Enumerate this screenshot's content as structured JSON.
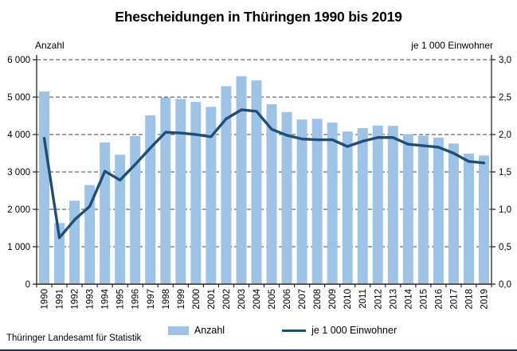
{
  "title": "Ehescheidungen in Thüringen 1990 bis 2019",
  "footer": "Thüringer Landesamt für Statistik",
  "legend": {
    "bar_label": "Anzahl",
    "line_label": "je 1 000 Einwohner"
  },
  "colors": {
    "bar": "#9DC3E6",
    "line": "#1F4E79",
    "grid": "#404040",
    "axis": "#262626",
    "bottom_rule": "#17375E"
  },
  "chart_data": {
    "type": "bar+line",
    "title": "Ehescheidungen in Thüringen 1990 bis 2019",
    "categories": [
      "1990",
      "1991",
      "1992",
      "1993",
      "1994",
      "1995",
      "1996",
      "1997",
      "1998",
      "1999",
      "2000",
      "2001",
      "2002",
      "2003",
      "2004",
      "2005",
      "2006",
      "2007",
      "2008",
      "2009",
      "2010",
      "2011",
      "2012",
      "2013",
      "2014",
      "2015",
      "2016",
      "2017",
      "2018",
      "2019"
    ],
    "series": [
      {
        "name": "Anzahl",
        "type": "bar",
        "axis": "left",
        "values": [
          5150,
          1630,
          2230,
          2650,
          3790,
          3460,
          3960,
          4510,
          4990,
          4950,
          4870,
          4740,
          5290,
          5560,
          5450,
          4810,
          4600,
          4400,
          4420,
          4320,
          4080,
          4170,
          4240,
          4230,
          4010,
          3970,
          3920,
          3760,
          3490,
          3440
        ]
      },
      {
        "name": "je 1 000 Einwohner",
        "type": "line",
        "axis": "right",
        "values": [
          1.95,
          0.62,
          0.86,
          1.04,
          1.51,
          1.39,
          1.6,
          1.82,
          2.03,
          2.02,
          2.0,
          1.97,
          2.21,
          2.33,
          2.31,
          2.07,
          1.99,
          1.94,
          1.93,
          1.93,
          1.84,
          1.91,
          1.96,
          1.96,
          1.87,
          1.85,
          1.83,
          1.75,
          1.64,
          1.62
        ]
      }
    ],
    "left_axis": {
      "title": "Anzahl",
      "min": 0,
      "max": 6000,
      "step": 1000,
      "tick_labels": [
        "6 000",
        "5 000",
        "4 000",
        "3 000",
        "2 000",
        "1 000",
        "0"
      ]
    },
    "right_axis": {
      "title": "je 1 000 Einwohner",
      "min": 0.0,
      "max": 3.0,
      "step": 0.5,
      "tick_labels": [
        "3,0",
        "2,5",
        "2,0",
        "1,5",
        "1,0",
        "0,5",
        "0,0"
      ]
    },
    "grid": "horizontal-dashed",
    "legend_position": "bottom"
  }
}
